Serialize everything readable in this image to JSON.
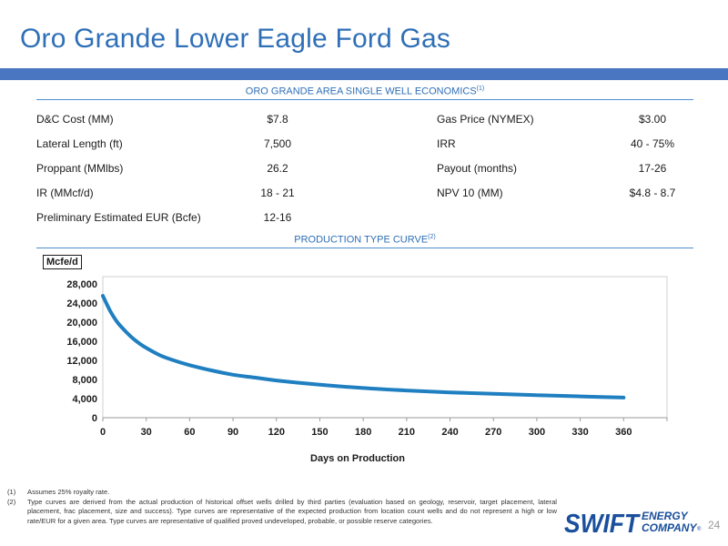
{
  "title": "Oro Grande Lower Eagle Ford Gas",
  "economics": {
    "heading": "ORO GRANDE AREA SINGLE WELL ECONOMICS",
    "heading_note": "(1)",
    "rows": [
      {
        "label1": "D&C Cost (MM)",
        "value1": "$7.8",
        "label2": "Gas Price (NYMEX)",
        "value2": "$3.00"
      },
      {
        "label1": "Lateral Length (ft)",
        "value1": "7,500",
        "label2": "IRR",
        "value2": "40 - 75%"
      },
      {
        "label1": "Proppant (MMlbs)",
        "value1": "26.2",
        "label2": "Payout (months)",
        "value2": "17-26"
      },
      {
        "label1": "IR (MMcf/d)",
        "value1": "18 - 21",
        "label2": "NPV 10 (MM)",
        "value2": "$4.8 - 8.7"
      },
      {
        "label1": "Preliminary Estimated EUR (Bcfe)",
        "value1": "12-16",
        "label2": "",
        "value2": ""
      }
    ]
  },
  "curve": {
    "heading": "PRODUCTION TYPE CURVE",
    "heading_note": "(2)"
  },
  "chart_data": {
    "type": "line",
    "title": "",
    "xlabel": "Days on Production",
    "ylabel": "Mcfe/d",
    "xlim": [
      0,
      390
    ],
    "ylim": [
      0,
      28000
    ],
    "xticks": [
      0,
      30,
      60,
      90,
      120,
      150,
      180,
      210,
      240,
      270,
      300,
      330,
      360
    ],
    "yticks": [
      0,
      4000,
      8000,
      12000,
      16000,
      20000,
      24000,
      28000
    ],
    "xtick_labels": [
      "0",
      "30",
      "60",
      "90",
      "120",
      "150",
      "180",
      "210",
      "240",
      "270",
      "300",
      "330",
      "360"
    ],
    "ytick_labels": [
      "0",
      "4,000",
      "8,000",
      "12,000",
      "16,000",
      "20,000",
      "24,000",
      "28,000"
    ],
    "grid": false,
    "color": "#1f7fc0",
    "series": [
      {
        "x": [
          0,
          5,
          10,
          15,
          20,
          25,
          30,
          40,
          50,
          60,
          75,
          90,
          105,
          120,
          150,
          180,
          210,
          240,
          270,
          300,
          330,
          360
        ],
        "y": [
          25500,
          22400,
          20000,
          18300,
          16800,
          15600,
          14600,
          13000,
          11900,
          11000,
          9900,
          9000,
          8400,
          7800,
          6900,
          6200,
          5700,
          5300,
          5000,
          4700,
          4450,
          4200
        ]
      }
    ]
  },
  "footnotes": [
    {
      "num": "(1)",
      "text": "Assumes 25% royalty rate."
    },
    {
      "num": "(2)",
      "text": "Type curves are derived from the actual production of historical offset wells drilled by third parties (evaluation based on geology, reservoir, target placement, lateral placement, frac placement, size and success). Type curves are representative of the expected production from location count wells and do not represent a high or low rate/EUR for a given area. Type curves are representative of qualified proved undeveloped, probable, or possible reserve categories."
    }
  ],
  "logo": {
    "word": "SWIFT",
    "line1": "ENERGY",
    "line2": "COMPANY",
    "mark": "®",
    "color": "#1a4f9c"
  },
  "page_number": "24"
}
